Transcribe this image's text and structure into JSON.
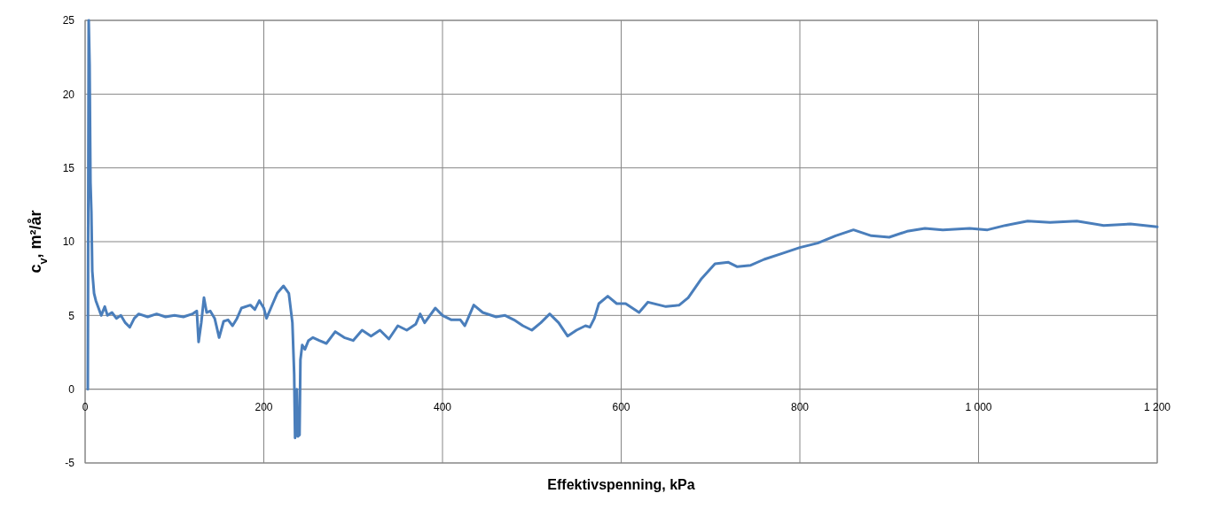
{
  "chart_data": {
    "type": "line",
    "xlabel": "Effektivspenning, kPa",
    "ylabel": "c$_{v}$, m²/år",
    "xlim": [
      0,
      1200
    ],
    "xticks": [
      0,
      200,
      400,
      600,
      800,
      {
        "value": 1000,
        "label": "1 000"
      },
      {
        "value": 1200,
        "label": "1 200"
      }
    ],
    "ylim": [
      -5,
      25
    ],
    "yticks": [
      -5,
      0,
      5,
      10,
      15,
      20,
      25
    ],
    "grid": true,
    "series": [
      {
        "color": "#4a7ebb",
        "x": [
          3,
          4,
          5,
          6,
          7,
          8,
          10,
          12,
          15,
          18,
          22,
          25,
          30,
          35,
          40,
          45,
          50,
          55,
          60,
          70,
          80,
          90,
          100,
          110,
          120,
          125,
          127,
          130,
          133,
          136,
          140,
          145,
          150,
          155,
          160,
          165,
          170,
          175,
          185,
          190,
          195,
          200,
          203,
          210,
          215,
          222,
          228,
          232,
          234,
          235,
          237,
          238,
          240,
          241,
          243,
          246,
          250,
          255,
          262,
          270,
          280,
          290,
          300,
          310,
          320,
          330,
          340,
          350,
          360,
          370,
          375,
          380,
          392,
          400,
          410,
          420,
          425,
          430,
          435,
          445,
          460,
          470,
          480,
          490,
          500,
          510,
          520,
          530,
          540,
          550,
          560,
          565,
          570,
          575,
          585,
          595,
          605,
          620,
          630,
          650,
          665,
          675,
          690,
          705,
          720,
          730,
          745,
          760,
          780,
          800,
          820,
          840,
          860,
          880,
          900,
          920,
          940,
          960,
          990,
          1010,
          1030,
          1055,
          1080,
          1110,
          1140,
          1170,
          1200
        ],
        "values": [
          0,
          25,
          22,
          14,
          12,
          8,
          6.5,
          6,
          5.5,
          5,
          5.6,
          5,
          5.2,
          4.8,
          5,
          4.5,
          4.2,
          4.8,
          5.1,
          4.9,
          5.1,
          4.9,
          5,
          4.9,
          5.1,
          5.3,
          3.2,
          4.5,
          6.2,
          5.2,
          5.3,
          4.8,
          3.5,
          4.6,
          4.7,
          4.3,
          4.8,
          5.5,
          5.7,
          5.4,
          6,
          5.5,
          4.8,
          5.8,
          6.5,
          7,
          6.5,
          4.5,
          1,
          -3.3,
          0,
          -3.2,
          -3.1,
          2,
          3,
          2.7,
          3.3,
          3.5,
          3.3,
          3.1,
          3.9,
          3.5,
          3.3,
          4,
          3.6,
          4,
          3.4,
          4.3,
          4,
          4.4,
          5.1,
          4.5,
          5.5,
          5,
          4.7,
          4.7,
          4.3,
          5,
          5.7,
          5.2,
          4.9,
          5,
          4.7,
          4.3,
          4,
          4.5,
          5.1,
          4.5,
          3.6,
          4,
          4.3,
          4.2,
          4.8,
          5.8,
          6.3,
          5.8,
          5.8,
          5.2,
          5.9,
          5.6,
          5.7,
          6.2,
          7.5,
          8.5,
          8.6,
          8.3,
          8.4,
          8.8,
          9.2,
          9.6,
          9.9,
          10.4,
          10.8,
          10.4,
          10.3,
          10.7,
          10.9,
          10.8,
          10.9,
          10.8,
          11.1,
          11.4,
          11.3,
          11.4,
          11.1,
          11.2,
          11
        ]
      }
    ]
  }
}
